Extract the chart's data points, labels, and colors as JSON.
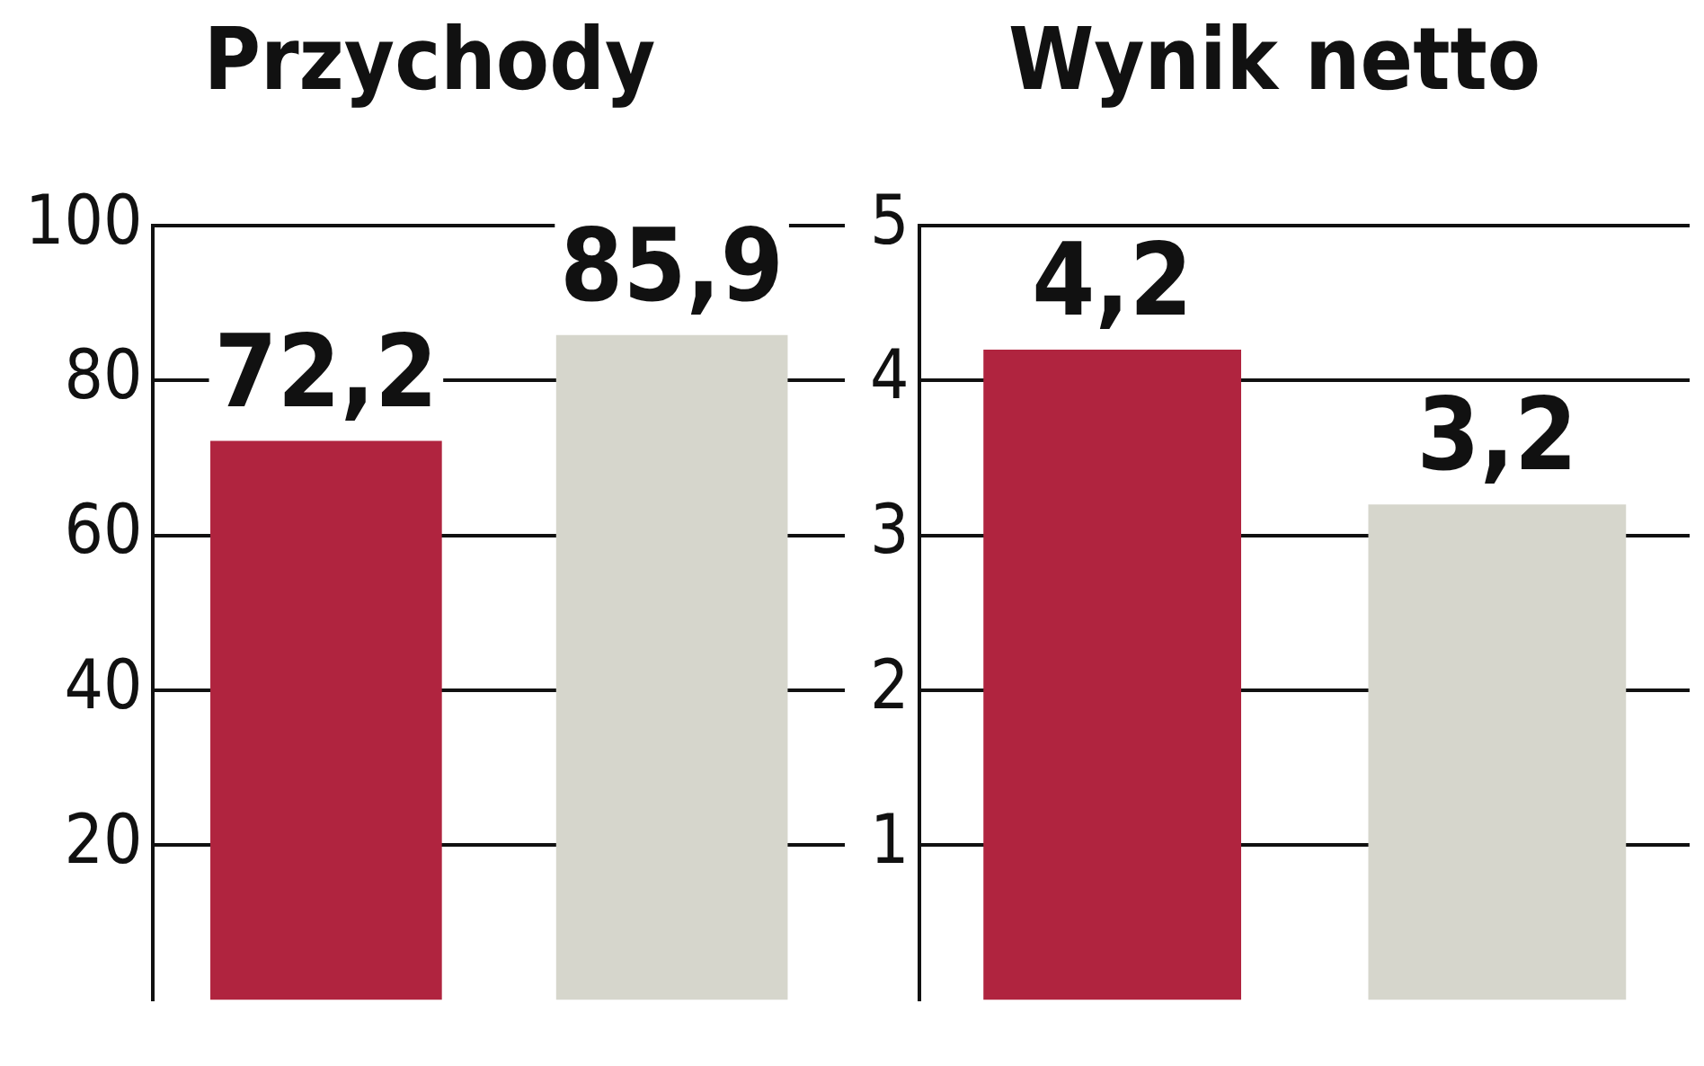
{
  "chart_data": [
    {
      "type": "bar",
      "title": "Przychody",
      "categories": [
        null,
        null
      ],
      "values": [
        72.2,
        85.9
      ],
      "colors": [
        "#b0243f",
        "#d6d6cc"
      ],
      "value_labels": [
        "72,2",
        "85,9"
      ],
      "ylim": [
        0,
        100
      ],
      "yticks": [
        20,
        40,
        60,
        80,
        100
      ],
      "grid": "y"
    },
    {
      "type": "bar",
      "title": "Wynik netto",
      "categories": [
        null,
        null
      ],
      "values": [
        4.2,
        3.2
      ],
      "colors": [
        "#b0243f",
        "#d6d6cc"
      ],
      "value_labels": [
        "4,2",
        "3,2"
      ],
      "ylim": [
        0,
        5
      ],
      "yticks": [
        1,
        2,
        3,
        4,
        5
      ],
      "grid": "y"
    }
  ]
}
